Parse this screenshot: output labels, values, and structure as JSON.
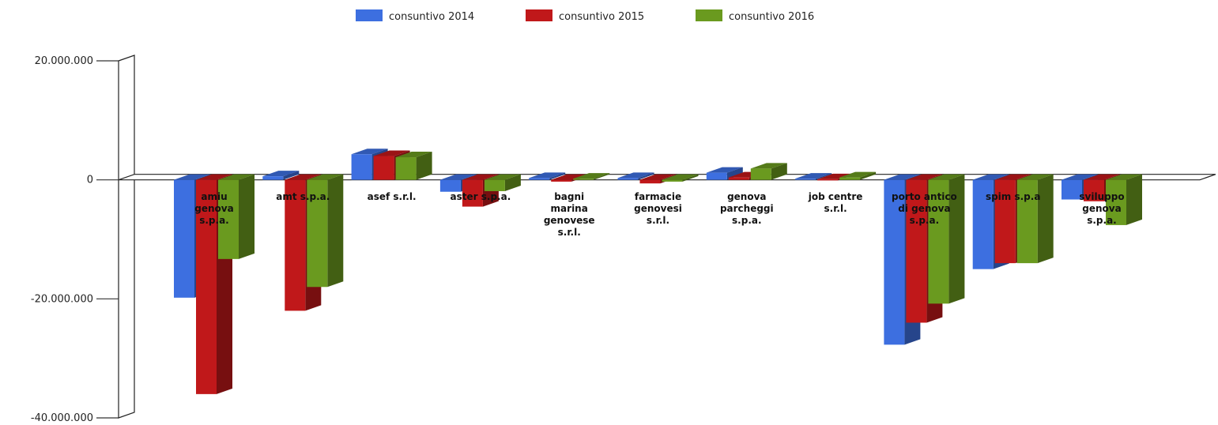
{
  "chart_data": {
    "type": "bar",
    "categories": [
      "amiu genova s.p.a.",
      "amt s.p.a.",
      "asef s.r.l.",
      "aster s.p.a.",
      "bagni marina genovese s.r.l.",
      "farmacie genovesi s.r.l.",
      "genova parcheggi s.p.a.",
      "job centre s.r.l.",
      "porto antico di genova s.p.a.",
      "spim s.p.a",
      "sviluppo genova s.p.a."
    ],
    "series": [
      {
        "name": "consuntivo 2014",
        "color": "#3d6fe0",
        "values": [
          -19800000,
          600000,
          4300000,
          -2000000,
          300000,
          300000,
          1200000,
          200000,
          -27700000,
          -15000000,
          -3300000
        ]
      },
      {
        "name": "consuntivo 2015",
        "color": "#c0181a",
        "values": [
          -36000000,
          -22000000,
          4000000,
          -4500000,
          -300000,
          -600000,
          400000,
          100000,
          -24000000,
          -14000000,
          -3600000
        ]
      },
      {
        "name": "consuntivo 2016",
        "color": "#6a9a1f",
        "values": [
          -13300000,
          -18000000,
          3800000,
          -1900000,
          200000,
          -300000,
          1900000,
          400000,
          -20800000,
          -14000000,
          -7600000
        ]
      }
    ],
    "yticks": [
      "20.000.000",
      "0",
      "-20.000.000",
      "-40.000.000"
    ],
    "ytick_values": [
      20000000,
      0,
      -20000000,
      -40000000
    ],
    "ylim": [
      -40000000,
      20000000
    ],
    "legend": "top-center",
    "style": "3d-column"
  }
}
